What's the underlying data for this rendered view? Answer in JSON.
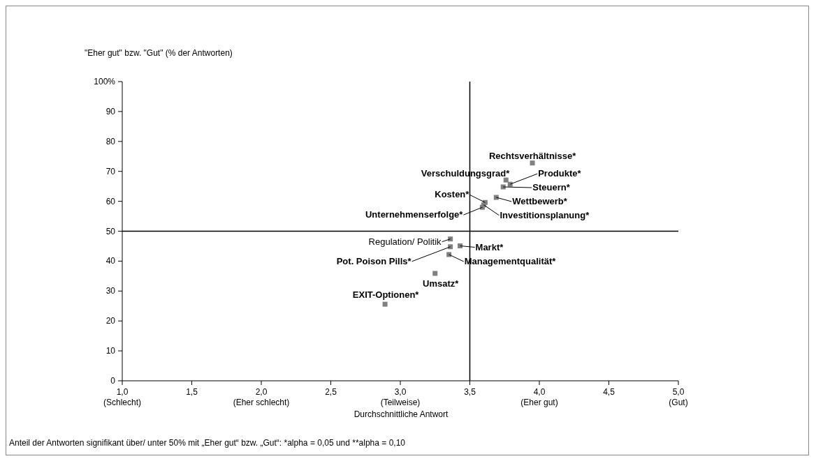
{
  "chart_data": {
    "type": "scatter",
    "ylabel": "\"Eher gut\" bzw. \"Gut\" (% der Antworten)",
    "xlabel": "Durchschnittliche Antwort",
    "x": [
      3.95,
      3.76,
      3.79,
      3.74,
      3.69,
      3.61,
      3.59,
      3.6,
      3.36,
      3.43,
      3.36,
      3.35,
      3.25,
      2.89
    ],
    "values": [
      72.8,
      67.1,
      65.7,
      64.8,
      61.3,
      59.6,
      58.0,
      58.8,
      47.4,
      45.1,
      44.8,
      42.2,
      35.9,
      25.6
    ],
    "color": "#808080",
    "marker": "square",
    "xlim": [
      1,
      5
    ],
    "xticks": [
      {
        "value": 1,
        "label": "1,0\n(Schlecht)"
      },
      {
        "value": 1.5,
        "label": "1,5"
      },
      {
        "value": 2,
        "label": "2,0\n(Eher schlecht)"
      },
      {
        "value": 2.5,
        "label": "2,5"
      },
      {
        "value": 3,
        "label": "3,0\n(Teilweise)"
      },
      {
        "value": 3.5,
        "label": "3,5"
      },
      {
        "value": 4,
        "label": "4,0\n(Eher gut)"
      },
      {
        "value": 4.5,
        "label": "4,5"
      },
      {
        "value": 5,
        "label": "5,0\n(Gut)"
      }
    ],
    "ylim": [
      0,
      100
    ],
    "yticks": [
      0,
      10,
      20,
      30,
      40,
      50,
      60,
      70,
      80,
      90,
      {
        "value": 100,
        "label": "100%"
      }
    ],
    "ref_lines": [
      {
        "axis": "x",
        "value": 3.5,
        "color": "#000000"
      },
      {
        "axis": "y",
        "value": 50,
        "color": "#000000"
      }
    ],
    "annotations": [
      {
        "text": "Rechtsverhältnisse*",
        "x": 3.95,
        "y": 72.8
      },
      {
        "text": "Verschuldungsgrad*",
        "x": 3.76,
        "y": 67.1
      },
      {
        "text": "Produkte*",
        "x": 3.79,
        "y": 65.7
      },
      {
        "text": "Steuern*",
        "x": 3.74,
        "y": 64.8
      },
      {
        "text": "Wettbewerb*",
        "x": 3.69,
        "y": 61.3
      },
      {
        "text": "Kosten*",
        "x": 3.61,
        "y": 59.6
      },
      {
        "text": "Unternehmenserfolge*",
        "x": 3.59,
        "y": 58.0
      },
      {
        "text": "Investitionsplanung*",
        "x": 3.6,
        "y": 58.8
      },
      {
        "text": "Regulation/ Politik",
        "x": 3.36,
        "y": 47.4
      },
      {
        "text": "Markt*",
        "x": 3.43,
        "y": 45.1
      },
      {
        "text": "Pot. Poison Pills*",
        "x": 3.36,
        "y": 44.8
      },
      {
        "text": "Managementqualität*",
        "x": 3.35,
        "y": 42.2
      },
      {
        "text": "Umsatz*",
        "x": 3.25,
        "y": 35.9
      },
      {
        "text": "EXIT-Optionen*",
        "x": 2.89,
        "y": 25.6
      },
      "Anteil der Antworten signifikant über/ unter 50% mit „Eher gut“ bzw. „Gut“: *alpha = 0,05 und **alpha = 0,10"
    ]
  }
}
